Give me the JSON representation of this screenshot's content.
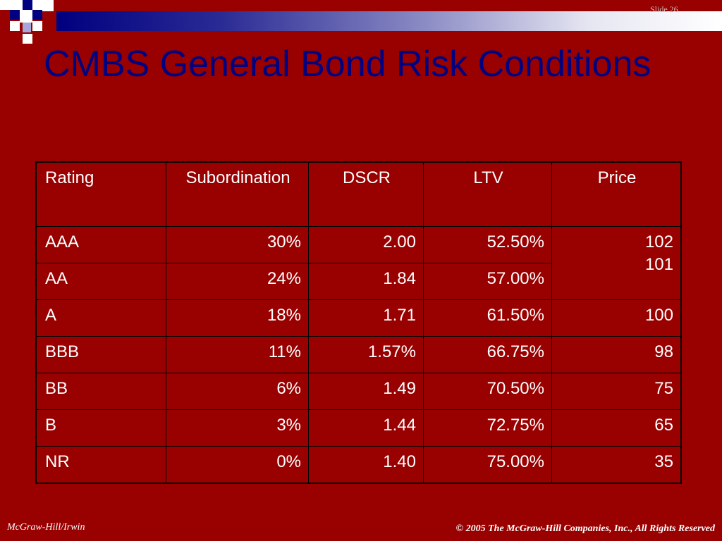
{
  "slide": {
    "number_label": "Slide 26",
    "title": "CMBS General Bond Risk Conditions"
  },
  "table": {
    "headers": [
      "Rating",
      "Subordination",
      "DSCR",
      "LTV",
      "Price"
    ],
    "rows": [
      {
        "rating": "AAA",
        "subordination": "30%",
        "dscr": "2.00",
        "ltv": "52.50%"
      },
      {
        "rating": "AA",
        "subordination": "24%",
        "dscr": "1.84",
        "ltv": "57.00%"
      },
      {
        "rating": "A",
        "subordination": "18%",
        "dscr": "1.71",
        "ltv": "61.50%",
        "price": "100"
      },
      {
        "rating": "BBB",
        "subordination": "11%",
        "dscr": "1.57%",
        "ltv": "66.75%",
        "price": "98"
      },
      {
        "rating": "BB",
        "subordination": "6%",
        "dscr": "1.49",
        "ltv": "70.50%",
        "price": "75"
      },
      {
        "rating": "B",
        "subordination": "3%",
        "dscr": "1.44",
        "ltv": "72.75%",
        "price": "65"
      },
      {
        "rating": "NR",
        "subordination": "0%",
        "dscr": "1.40",
        "ltv": "75.00%",
        "price": "35"
      }
    ],
    "merged_price": {
      "line1": "102",
      "line2": "101"
    }
  },
  "footer": {
    "left": "McGraw-Hill/Irwin",
    "right": "© 2005 The McGraw-Hill Companies, Inc., All Rights Reserved"
  },
  "colors": {
    "background": "#990000",
    "title": "#000080",
    "text": "#ffffff"
  }
}
